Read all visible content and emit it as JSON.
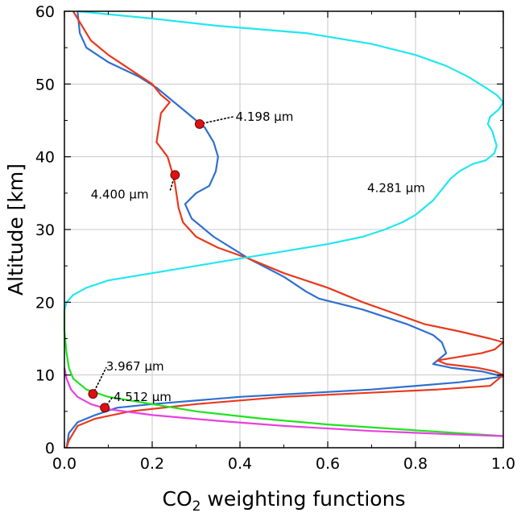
{
  "chart_data": {
    "type": "line",
    "xlabel_main": "CO",
    "xlabel_sub": "2",
    "xlabel_rest": " weighting functions",
    "ylabel": "Altitude [km]",
    "xlim": [
      0,
      1
    ],
    "ylim": [
      0,
      60
    ],
    "xticks": [
      "0.0",
      "0.2",
      "0.4",
      "0.6",
      "0.8",
      "1.0"
    ],
    "yticks": [
      "0",
      "10",
      "20",
      "30",
      "40",
      "50",
      "60"
    ],
    "grid": true,
    "series": [
      {
        "name": "4.198 µm",
        "color": "#2f6fd0",
        "points": [
          [
            0.03,
            60
          ],
          [
            0.035,
            57
          ],
          [
            0.05,
            55
          ],
          [
            0.1,
            53
          ],
          [
            0.17,
            51
          ],
          [
            0.21,
            49.5
          ],
          [
            0.24,
            48
          ],
          [
            0.27,
            46.5
          ],
          [
            0.3,
            45
          ],
          [
            0.32,
            44
          ],
          [
            0.34,
            42
          ],
          [
            0.35,
            40
          ],
          [
            0.345,
            38
          ],
          [
            0.33,
            36
          ],
          [
            0.3,
            35
          ],
          [
            0.275,
            33.5
          ],
          [
            0.29,
            31.5
          ],
          [
            0.34,
            29
          ],
          [
            0.42,
            26
          ],
          [
            0.5,
            23.5
          ],
          [
            0.55,
            21.5
          ],
          [
            0.58,
            20.5
          ],
          [
            0.68,
            19
          ],
          [
            0.78,
            17
          ],
          [
            0.84,
            15.5
          ],
          [
            0.86,
            14.5
          ],
          [
            0.87,
            13
          ],
          [
            0.86,
            12.5
          ],
          [
            0.84,
            11.5
          ],
          [
            0.88,
            11
          ],
          [
            0.95,
            10.5
          ],
          [
            1.0,
            9.8
          ],
          [
            0.9,
            9
          ],
          [
            0.7,
            8
          ],
          [
            0.4,
            7
          ],
          [
            0.2,
            6
          ],
          [
            0.12,
            5.5
          ],
          [
            0.07,
            4.5
          ],
          [
            0.03,
            3.5
          ],
          [
            0.01,
            2
          ],
          [
            0.005,
            0
          ]
        ]
      },
      {
        "name": "4.400 µm",
        "color": "#e8391d",
        "points": [
          [
            0.02,
            60
          ],
          [
            0.03,
            59
          ],
          [
            0.06,
            56
          ],
          [
            0.1,
            54
          ],
          [
            0.15,
            52
          ],
          [
            0.2,
            50
          ],
          [
            0.22,
            48.5
          ],
          [
            0.24,
            47.5
          ],
          [
            0.22,
            46
          ],
          [
            0.215,
            44
          ],
          [
            0.21,
            42
          ],
          [
            0.235,
            40
          ],
          [
            0.245,
            38
          ],
          [
            0.25,
            37
          ],
          [
            0.255,
            35
          ],
          [
            0.26,
            33
          ],
          [
            0.27,
            31
          ],
          [
            0.3,
            29
          ],
          [
            0.35,
            27.5
          ],
          [
            0.42,
            26
          ],
          [
            0.5,
            24
          ],
          [
            0.6,
            22
          ],
          [
            0.68,
            20
          ],
          [
            0.75,
            18.5
          ],
          [
            0.82,
            17
          ],
          [
            0.9,
            16
          ],
          [
            0.97,
            15
          ],
          [
            1.0,
            14.5
          ],
          [
            0.98,
            13.5
          ],
          [
            0.95,
            13
          ],
          [
            0.9,
            12.5
          ],
          [
            0.85,
            12
          ],
          [
            0.87,
            11.5
          ],
          [
            0.94,
            11
          ],
          [
            0.98,
            10.5
          ],
          [
            1.0,
            10
          ],
          [
            0.97,
            8.5
          ],
          [
            0.85,
            8
          ],
          [
            0.5,
            7
          ],
          [
            0.3,
            6
          ],
          [
            0.15,
            5
          ],
          [
            0.07,
            4
          ],
          [
            0.03,
            3
          ],
          [
            0.01,
            1
          ],
          [
            0.005,
            0
          ]
        ]
      },
      {
        "name": "4.281 µm",
        "color": "#22e6ef",
        "points": [
          [
            0.03,
            60
          ],
          [
            0.2,
            59
          ],
          [
            0.35,
            58
          ],
          [
            0.55,
            57
          ],
          [
            0.7,
            55.5
          ],
          [
            0.8,
            54
          ],
          [
            0.87,
            52.5
          ],
          [
            0.92,
            51
          ],
          [
            0.96,
            49.5
          ],
          [
            0.985,
            48.5
          ],
          [
            1.0,
            47.5
          ],
          [
            0.99,
            46.5
          ],
          [
            0.97,
            45.5
          ],
          [
            0.965,
            44.5
          ],
          [
            0.975,
            43.5
          ],
          [
            0.98,
            42.5
          ],
          [
            0.985,
            41.5
          ],
          [
            0.98,
            40.5
          ],
          [
            0.96,
            39.5
          ],
          [
            0.93,
            39
          ],
          [
            0.9,
            38
          ],
          [
            0.88,
            37
          ],
          [
            0.86,
            35.5
          ],
          [
            0.84,
            34
          ],
          [
            0.82,
            33
          ],
          [
            0.8,
            32
          ],
          [
            0.77,
            31
          ],
          [
            0.73,
            30
          ],
          [
            0.68,
            29
          ],
          [
            0.6,
            28
          ],
          [
            0.5,
            27
          ],
          [
            0.4,
            26
          ],
          [
            0.3,
            25
          ],
          [
            0.2,
            24
          ],
          [
            0.1,
            23
          ],
          [
            0.05,
            22
          ],
          [
            0.02,
            21
          ],
          [
            0.005,
            20
          ],
          [
            0.0,
            19
          ]
        ]
      },
      {
        "name": "3.967 µm",
        "color": "#1fe31f",
        "points": [
          [
            0.0,
            19
          ],
          [
            0.0,
            16
          ],
          [
            0.005,
            13
          ],
          [
            0.01,
            11
          ],
          [
            0.02,
            9.5
          ],
          [
            0.05,
            8
          ],
          [
            0.1,
            7
          ],
          [
            0.2,
            6
          ],
          [
            0.3,
            5
          ],
          [
            0.45,
            4
          ],
          [
            0.6,
            3.2
          ],
          [
            0.8,
            2.4
          ],
          [
            1.0,
            1.6
          ]
        ]
      },
      {
        "name": "4.512 µm",
        "color": "#e840e0",
        "points": [
          [
            0.0,
            11
          ],
          [
            0.005,
            9.5
          ],
          [
            0.015,
            8
          ],
          [
            0.03,
            7
          ],
          [
            0.06,
            6
          ],
          [
            0.1,
            5.3
          ],
          [
            0.2,
            4.5
          ],
          [
            0.35,
            3.7
          ],
          [
            0.5,
            3
          ],
          [
            0.7,
            2.3
          ],
          [
            0.9,
            1.8
          ],
          [
            1.0,
            1.6
          ]
        ]
      }
    ],
    "markers": [
      {
        "x": 0.308,
        "y": 44.5,
        "color": "#e01010"
      },
      {
        "x": 0.252,
        "y": 37.5,
        "color": "#e01010"
      },
      {
        "x": 0.065,
        "y": 7.4,
        "color": "#e01010"
      },
      {
        "x": 0.092,
        "y": 5.5,
        "color": "#e01010"
      }
    ],
    "annotations": [
      {
        "text": "4.198 µm",
        "x": 0.39,
        "y": 45.5,
        "anchor": "start",
        "line": [
          [
            0.308,
            44.5
          ],
          [
            0.385,
            45.5
          ]
        ],
        "dotted": true
      },
      {
        "text": "4.400 µm",
        "x": 0.06,
        "y": 34.8,
        "anchor": "start",
        "line": [
          [
            0.252,
            37.5
          ],
          [
            0.24,
            35.2
          ]
        ],
        "dotted": true
      },
      {
        "text": "4.281 µm",
        "x": 0.69,
        "y": 35.7,
        "anchor": "start",
        "line": null,
        "dotted": false
      },
      {
        "text": "3.967 µm",
        "x": 0.095,
        "y": 11.2,
        "anchor": "start",
        "line": [
          [
            0.065,
            7.4
          ],
          [
            0.095,
            11.0
          ]
        ],
        "dotted": true
      },
      {
        "text": "4.512 µm",
        "x": 0.112,
        "y": 7.0,
        "anchor": "start",
        "line": [
          [
            0.092,
            5.5
          ],
          [
            0.11,
            7.0
          ]
        ],
        "dotted": true
      }
    ]
  }
}
